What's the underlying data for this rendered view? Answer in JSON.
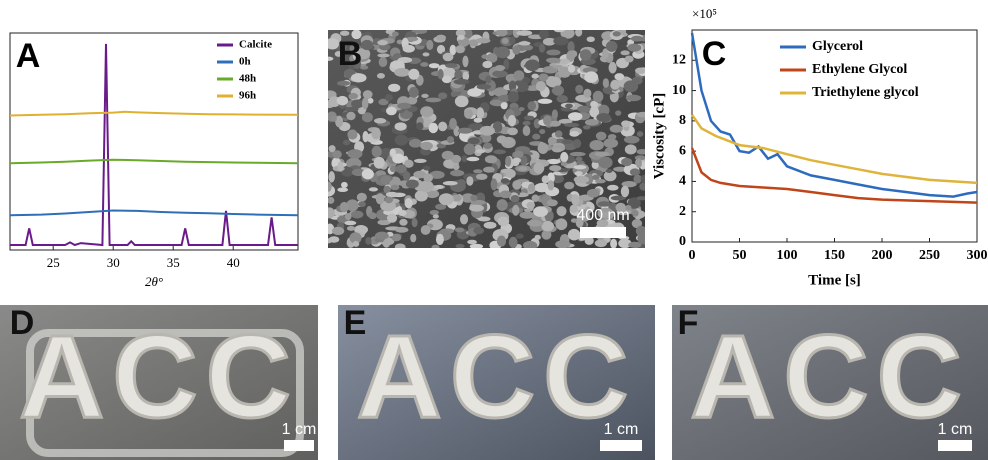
{
  "chart_data": [
    {
      "type": "line",
      "panel": "A",
      "xlabel": "2θ°",
      "xlim": [
        21.4,
        45.4
      ],
      "xticks": [
        25,
        30,
        35,
        40
      ],
      "ylim": [
        0,
        100
      ],
      "legend": "upper right",
      "series": [
        {
          "name": "Calcite",
          "color": "#6a1b8a",
          "x": [
            21.4,
            22.7,
            23.0,
            23.3,
            26.0,
            26.4,
            26.8,
            27.3,
            29.1,
            29.4,
            29.7,
            31.2,
            31.5,
            31.8,
            35.7,
            36.0,
            36.3,
            39.1,
            39.4,
            39.7,
            42.9,
            43.2,
            43.5,
            45.4
          ],
          "values": [
            2.3,
            2.3,
            10,
            2.3,
            2.3,
            3.5,
            2.3,
            3.2,
            2.3,
            95,
            2.3,
            2.3,
            4,
            2.3,
            2.3,
            10,
            2.3,
            2.3,
            18,
            2.3,
            2.3,
            15,
            2.3,
            2.3
          ]
        },
        {
          "name": "0h",
          "color": "#2f6fb8",
          "x": [
            21.4,
            24,
            26,
            28,
            30,
            32,
            34,
            36,
            38,
            40,
            42,
            45.4
          ],
          "values": [
            16,
            16.3,
            16.8,
            17.5,
            18.2,
            18,
            17.5,
            17.2,
            16.9,
            16.6,
            16.3,
            16
          ]
        },
        {
          "name": "48h",
          "color": "#6aaa2a",
          "x": [
            21.4,
            24,
            26,
            28,
            30,
            32,
            34,
            36,
            38,
            40,
            42,
            45.4
          ],
          "values": [
            40,
            40.3,
            40.7,
            41.2,
            41.6,
            41.4,
            41,
            40.7,
            40.5,
            40.3,
            40.2,
            40
          ]
        },
        {
          "name": "96h",
          "color": "#e0b030",
          "x": [
            21.4,
            24,
            26,
            28,
            30,
            31,
            32,
            34,
            36,
            38,
            40,
            42,
            45.4
          ],
          "values": [
            62,
            62.3,
            62.6,
            63,
            63.3,
            63.7,
            63.4,
            63.1,
            62.8,
            62.6,
            62.5,
            62.4,
            62.3
          ]
        }
      ]
    },
    {
      "type": "line",
      "panel": "C",
      "xlabel": "Time [s]",
      "ylabel": "Viscosity [cP]",
      "y_multiplier": "×10⁵",
      "xlim": [
        0,
        300
      ],
      "xticks": [
        0,
        50,
        100,
        150,
        200,
        250,
        300
      ],
      "ylim": [
        0,
        14
      ],
      "yticks": [
        0,
        2,
        4,
        6,
        8,
        10,
        12
      ],
      "legend": "upper right",
      "series": [
        {
          "name": "Glycerol",
          "color": "#2e6bbf",
          "x": [
            0,
            10,
            20,
            30,
            40,
            50,
            60,
            70,
            80,
            90,
            100,
            125,
            150,
            175,
            200,
            225,
            250,
            275,
            290,
            300
          ],
          "values": [
            13.8,
            10,
            8,
            7.3,
            7.1,
            6,
            5.9,
            6.3,
            5.5,
            5.8,
            5,
            4.4,
            4.1,
            3.8,
            3.5,
            3.3,
            3.1,
            3.0,
            3.2,
            3.3
          ]
        },
        {
          "name": "Ethylene Glycol",
          "color": "#c0461a",
          "x": [
            0,
            10,
            20,
            30,
            50,
            75,
            100,
            125,
            150,
            175,
            200,
            250,
            300
          ],
          "values": [
            6.2,
            4.6,
            4.1,
            3.9,
            3.7,
            3.6,
            3.5,
            3.3,
            3.1,
            2.9,
            2.8,
            2.7,
            2.6
          ]
        },
        {
          "name": "Triethylene glycol",
          "color": "#e0b43a",
          "x": [
            0,
            10,
            25,
            50,
            75,
            100,
            125,
            150,
            175,
            200,
            225,
            250,
            275,
            300
          ],
          "values": [
            8.4,
            7.5,
            7,
            6.4,
            6.2,
            5.8,
            5.4,
            5.1,
            4.8,
            4.5,
            4.3,
            4.1,
            4.0,
            3.9
          ]
        }
      ]
    }
  ],
  "images": [
    {
      "panel": "B",
      "scale_bar": "400 nm"
    },
    {
      "panel": "D",
      "text": "ACC",
      "scale_bar": "1 cm"
    },
    {
      "panel": "E",
      "text": "ACC",
      "scale_bar": "1 cm"
    },
    {
      "panel": "F",
      "text": "ACC",
      "scale_bar": "1 cm"
    }
  ]
}
